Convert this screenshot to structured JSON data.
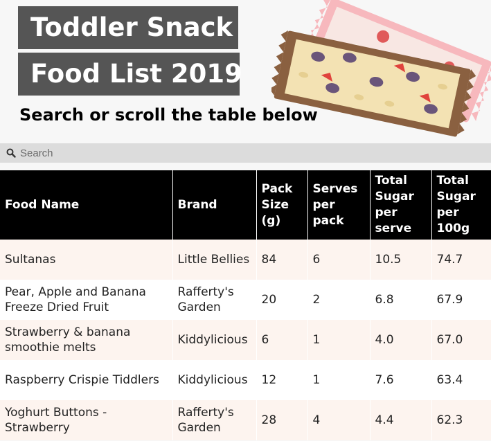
{
  "header": {
    "title_line1": "Toddler Snack",
    "title_line2": "Food List 2019",
    "subtitle": "Search or scroll the table below",
    "illustration": "snack-bars-illustration"
  },
  "search": {
    "placeholder": "Search",
    "icon": "search-icon"
  },
  "table": {
    "columns": [
      "Food Name",
      "Brand",
      "Pack Size (g)",
      "Serves per pack",
      "Total Sugar per serve",
      "Total Sugar per 100g"
    ],
    "rows": [
      [
        "Sultanas",
        "Little Bellies",
        "84",
        "6",
        "10.5",
        "74.7"
      ],
      [
        "Pear, Apple and Banana Freeze Dried Fruit",
        "Rafferty's Garden",
        "20",
        "2",
        "6.8",
        "67.9"
      ],
      [
        "Strawberry & banana smoothie melts",
        "Kiddylicious",
        "6",
        "1",
        "4.0",
        "67.0"
      ],
      [
        "Raspberry Crispie Tiddlers",
        "Kiddylicious",
        "12",
        "1",
        "7.6",
        "63.4"
      ],
      [
        "Yoghurt Buttons - Strawberry",
        "Rafferty's Garden",
        "28",
        "4",
        "4.4",
        "62.3"
      ]
    ]
  },
  "colors": {
    "title_bg": "#555555",
    "header_bg": "#000000",
    "row_alt": "#fdf4ef",
    "search_bg": "#dcdcdc"
  }
}
